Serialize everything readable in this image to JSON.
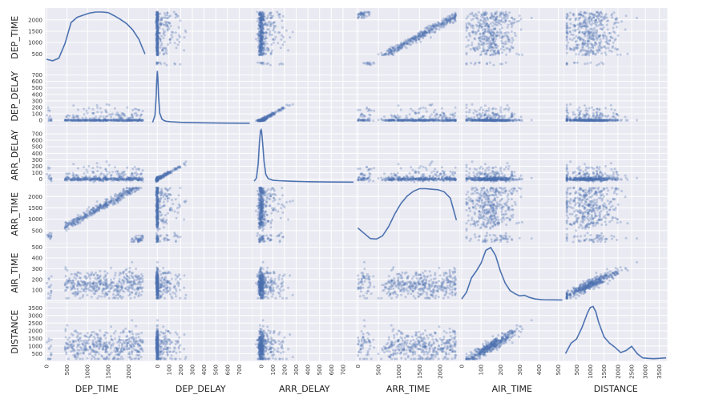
{
  "chart_data": {
    "type": "scatter",
    "subtype": "scatter_matrix",
    "diagonal": "kde",
    "grid": true,
    "colors": {
      "background": "#eaeaf2",
      "marker": "#4c72b0",
      "line": "#4c72b0"
    },
    "variables": [
      "DEP_TIME",
      "DEP_DELAY",
      "ARR_DELAY",
      "ARR_TIME",
      "AIR_TIME",
      "DISTANCE"
    ],
    "x_ticks": [
      [
        "0",
        "500",
        "1000",
        "1500",
        "2000"
      ],
      [
        "0",
        "100",
        "200",
        "300",
        "400",
        "500",
        "600",
        "700"
      ],
      [
        "0",
        "100",
        "200",
        "300",
        "400",
        "500",
        "600",
        "700"
      ],
      [
        "0",
        "500",
        "1000",
        "1500",
        "2000"
      ],
      [
        "0",
        "100",
        "200",
        "300",
        "400",
        "500"
      ],
      [
        "500",
        "1000",
        "1500",
        "2000",
        "2500",
        "3000",
        "3500"
      ]
    ],
    "y_ticks": [
      [
        "500",
        "1000",
        "1500",
        "2000"
      ],
      [
        "0",
        "100",
        "200",
        "300",
        "400",
        "500",
        "600",
        "700"
      ],
      [
        "0",
        "100",
        "200",
        "300",
        "400",
        "500",
        "600",
        "700"
      ],
      [
        "500",
        "1000",
        "1500",
        "2000"
      ],
      [
        "0",
        "100",
        "200",
        "300",
        "400",
        "500"
      ],
      [
        "500",
        "1000",
        "1500",
        "2000",
        "2500",
        "3000",
        "3500"
      ]
    ],
    "ranges": [
      [
        0,
        2450
      ],
      [
        -60,
        800
      ],
      [
        -60,
        800
      ],
      [
        0,
        2450
      ],
      [
        0,
        520
      ],
      [
        100,
        3750
      ]
    ],
    "kde_curves": [
      {
        "variable": "DEP_TIME",
        "x": [
          0,
          150,
          300,
          450,
          600,
          750,
          900,
          1050,
          1200,
          1350,
          1500,
          1650,
          1800,
          1950,
          2100,
          2250,
          2400
        ],
        "density": [
          0.1,
          0.07,
          0.12,
          0.4,
          0.8,
          0.9,
          0.94,
          0.98,
          1.0,
          1.0,
          0.99,
          0.93,
          0.86,
          0.78,
          0.66,
          0.48,
          0.2
        ]
      },
      {
        "variable": "DEP_DELAY",
        "x": [
          -40,
          -20,
          -10,
          -5,
          0,
          5,
          10,
          20,
          40,
          60,
          80,
          120,
          200,
          400,
          600,
          790
        ],
        "density": [
          0.02,
          0.15,
          0.5,
          0.8,
          1.0,
          0.85,
          0.55,
          0.2,
          0.08,
          0.05,
          0.04,
          0.03,
          0.02,
          0.01,
          0.005,
          0.003
        ]
      },
      {
        "variable": "ARR_DELAY",
        "x": [
          -60,
          -40,
          -25,
          -15,
          -5,
          0,
          5,
          15,
          25,
          40,
          60,
          100,
          150,
          250,
          400,
          600,
          790
        ],
        "density": [
          0.02,
          0.08,
          0.35,
          0.75,
          0.98,
          1.0,
          0.95,
          0.7,
          0.4,
          0.15,
          0.07,
          0.04,
          0.03,
          0.02,
          0.01,
          0.005,
          0.003
        ]
      },
      {
        "variable": "ARR_TIME",
        "x": [
          0,
          150,
          300,
          450,
          600,
          750,
          900,
          1050,
          1200,
          1350,
          1500,
          1650,
          1800,
          1950,
          2100,
          2250,
          2400
        ],
        "density": [
          0.25,
          0.15,
          0.05,
          0.04,
          0.1,
          0.28,
          0.52,
          0.72,
          0.86,
          0.95,
          1.0,
          1.0,
          0.99,
          0.98,
          0.94,
          0.82,
          0.4
        ]
      },
      {
        "variable": "AIR_TIME",
        "x": [
          0,
          25,
          50,
          75,
          100,
          125,
          150,
          175,
          200,
          225,
          250,
          275,
          300,
          325,
          350,
          380,
          420,
          520
        ],
        "density": [
          0.02,
          0.15,
          0.42,
          0.55,
          0.7,
          0.95,
          1.0,
          0.85,
          0.55,
          0.32,
          0.18,
          0.12,
          0.08,
          0.09,
          0.05,
          0.02,
          0.005,
          0.002
        ]
      },
      {
        "variable": "DISTANCE",
        "x": [
          100,
          300,
          500,
          700,
          900,
          1000,
          1100,
          1200,
          1300,
          1500,
          1700,
          1900,
          2100,
          2300,
          2500,
          2700,
          2900,
          3100,
          3300,
          3500,
          3750
        ],
        "density": [
          0.1,
          0.3,
          0.38,
          0.6,
          0.88,
          0.98,
          1.0,
          0.9,
          0.7,
          0.42,
          0.3,
          0.22,
          0.12,
          0.16,
          0.24,
          0.1,
          0.02,
          0.01,
          0.005,
          0.01,
          0.02
        ]
      }
    ],
    "correlations": [
      [
        1.0,
        0.08,
        0.06,
        0.95,
        0.02,
        0.02
      ],
      [
        0.08,
        1.0,
        0.95,
        0.02,
        0.03,
        0.01
      ],
      [
        0.06,
        0.95,
        1.0,
        0.03,
        0.05,
        0.02
      ],
      [
        0.95,
        0.02,
        0.03,
        1.0,
        0.02,
        0.02
      ],
      [
        0.02,
        0.03,
        0.05,
        0.02,
        1.0,
        0.97
      ],
      [
        0.02,
        0.01,
        0.02,
        0.02,
        0.97,
        1.0
      ]
    ]
  }
}
